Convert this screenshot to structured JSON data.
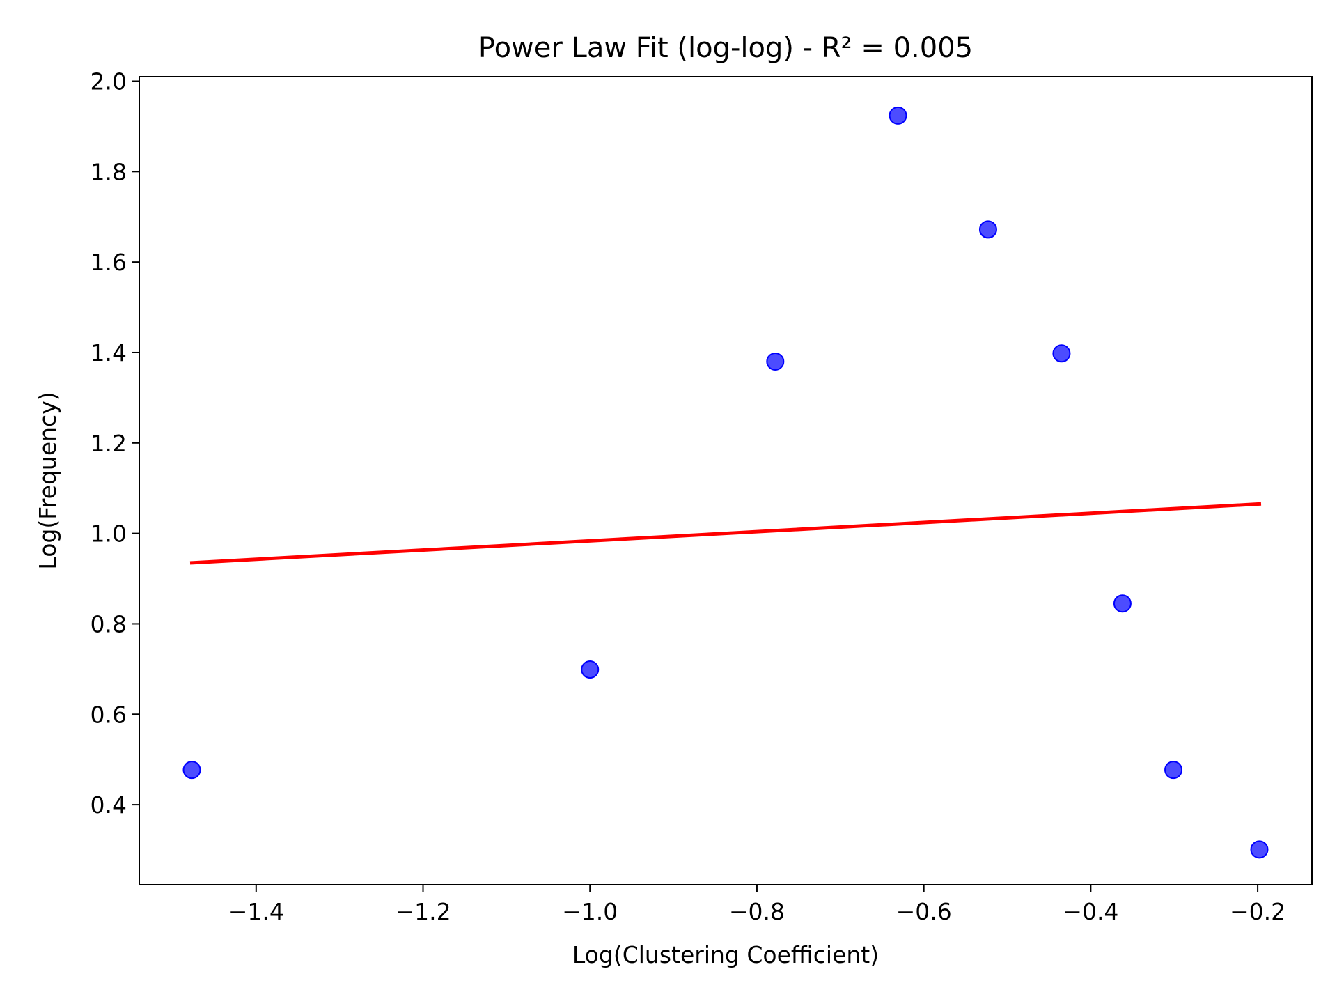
{
  "chart_data": {
    "type": "scatter",
    "title": "Power Law Fit (log-log) - R² = 0.005",
    "xlabel": "Log(Clustering Coefficient)",
    "ylabel": "Log(Frequency)",
    "xlim": [
      -1.54,
      -0.135
    ],
    "ylim": [
      0.223,
      2.01
    ],
    "xticks": [
      -1.4,
      -1.2,
      -1.0,
      -0.8,
      -0.6,
      -0.4,
      -0.2
    ],
    "xtick_labels": [
      "−1.4",
      "−1.2",
      "−1.0",
      "−0.8",
      "−0.6",
      "−0.4",
      "−0.2"
    ],
    "yticks": [
      0.4,
      0.6,
      0.8,
      1.0,
      1.2,
      1.4,
      1.6,
      1.8,
      2.0
    ],
    "ytick_labels": [
      "0.4",
      "0.6",
      "0.8",
      "1.0",
      "1.2",
      "1.4",
      "1.6",
      "1.8",
      "2.0"
    ],
    "grid": false,
    "series": [
      {
        "type": "scatter",
        "color": "#0000ff",
        "points": [
          {
            "x": -1.477,
            "y": 0.477
          },
          {
            "x": -1.0,
            "y": 0.699
          },
          {
            "x": -0.778,
            "y": 1.38
          },
          {
            "x": -0.631,
            "y": 1.924
          },
          {
            "x": -0.523,
            "y": 1.672
          },
          {
            "x": -0.435,
            "y": 1.398
          },
          {
            "x": -0.362,
            "y": 0.845
          },
          {
            "x": -0.301,
            "y": 0.477
          },
          {
            "x": -0.198,
            "y": 0.301
          }
        ]
      },
      {
        "type": "line",
        "color": "#ff0000",
        "points": [
          {
            "x": -1.477,
            "y": 0.935
          },
          {
            "x": -0.198,
            "y": 1.065
          }
        ]
      }
    ]
  }
}
